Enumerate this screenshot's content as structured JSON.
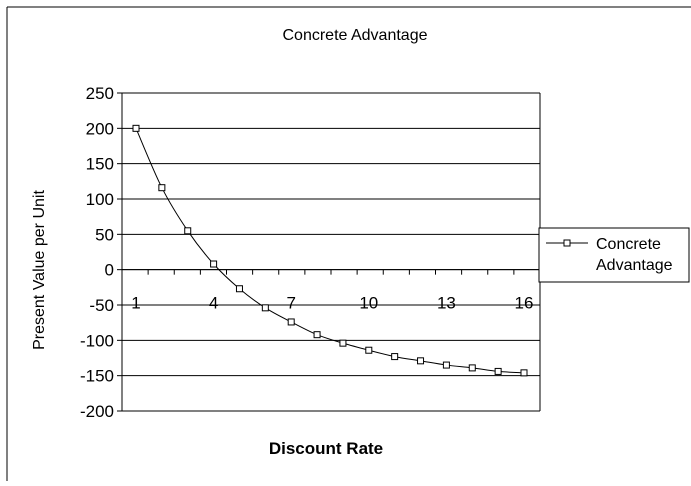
{
  "chart_data": {
    "type": "line",
    "title": "Concrete Advantage",
    "xlabel": "Discount Rate",
    "ylabel": "Present Value per Unit",
    "x": [
      1,
      2,
      3,
      4,
      5,
      6,
      7,
      8,
      9,
      10,
      11,
      12,
      13,
      14,
      15,
      16
    ],
    "x_tick_labels": [
      "1",
      "4",
      "7",
      "10",
      "13",
      "16"
    ],
    "x_tick_values": [
      1,
      4,
      7,
      10,
      13,
      16
    ],
    "ylim": [
      -200,
      250
    ],
    "y_ticks": [
      -200,
      -150,
      -100,
      -50,
      0,
      50,
      100,
      150,
      200,
      250
    ],
    "y_tick_labels": [
      "-200",
      "-150",
      "-100",
      "-50",
      "0",
      "50",
      "100",
      "150",
      "200",
      "250"
    ],
    "grid": "horizontal",
    "legend_position": "right",
    "series": [
      {
        "name": "Concrete Advantage",
        "marker": "square-open",
        "values": [
          200,
          116,
          55,
          8,
          -27,
          -54,
          -74,
          -92,
          -104,
          -114,
          -123,
          -129,
          -135,
          -139,
          -144,
          -146
        ]
      }
    ]
  },
  "legend": {
    "lines": [
      "Concrete",
      "Advantage"
    ]
  },
  "colors": {
    "line": "#000000",
    "grid": "#000000",
    "background": "#ffffff"
  }
}
